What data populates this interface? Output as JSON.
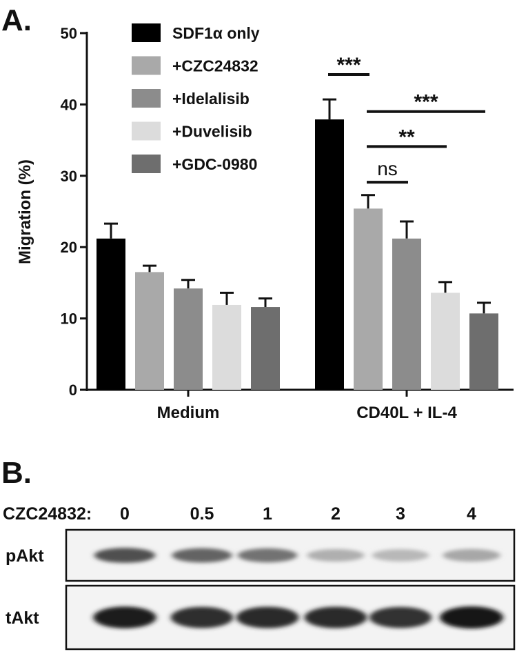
{
  "panel_a": {
    "letter": "A.",
    "chart_data": {
      "type": "bar",
      "title": "",
      "xlabel": "",
      "ylabel": "Migration (%)",
      "ylim": [
        0,
        50
      ],
      "yticks": [
        0,
        10,
        20,
        30,
        40,
        50
      ],
      "categories": [
        "Medium",
        "CD40L + IL-4"
      ],
      "legend_position": "top-left",
      "series": [
        {
          "name": "SDF1α only",
          "color": "#000000",
          "values": [
            21.2,
            37.9
          ],
          "errors": [
            2.1,
            2.8
          ]
        },
        {
          "name": "+CZC24832",
          "color": "#a9a9a9",
          "values": [
            16.5,
            25.4
          ],
          "errors": [
            0.9,
            1.9
          ]
        },
        {
          "name": "+Idelalisib",
          "color": "#8c8c8c",
          "values": [
            14.2,
            21.2
          ],
          "errors": [
            1.2,
            2.4
          ]
        },
        {
          "name": "+Duvelisib",
          "color": "#dcdcdc",
          "values": [
            11.9,
            13.6
          ],
          "errors": [
            1.7,
            1.5
          ]
        },
        {
          "name": "+GDC-0980",
          "color": "#6e6e6e",
          "values": [
            11.6,
            10.7
          ],
          "errors": [
            1.2,
            1.5
          ]
        }
      ],
      "annotations": [
        {
          "text": "***",
          "group": "CD40L + IL-4",
          "from_series": 0,
          "to_series": 1,
          "y": 44.2
        },
        {
          "text": "***",
          "group": "CD40L + IL-4",
          "from_series": 1,
          "to_series": 4,
          "y": 39.0
        },
        {
          "text": "**",
          "group": "CD40L + IL-4",
          "from_series": 1,
          "to_series": 3,
          "y": 34.1
        },
        {
          "text": "ns",
          "group": "CD40L + IL-4",
          "from_series": 1,
          "to_series": 2,
          "y": 29.1
        }
      ]
    }
  },
  "panel_b": {
    "letter": "B.",
    "dose_label": "CZC24832:",
    "doses": [
      "0",
      "0.5",
      "1",
      "2",
      "3",
      "4"
    ],
    "rows": [
      {
        "label": "pAkt",
        "band_intensity": [
          0.72,
          0.62,
          0.55,
          0.26,
          0.22,
          0.3
        ]
      },
      {
        "label": "tAkt",
        "band_intensity": [
          0.95,
          0.88,
          0.9,
          0.9,
          0.86,
          1.0
        ]
      }
    ]
  }
}
